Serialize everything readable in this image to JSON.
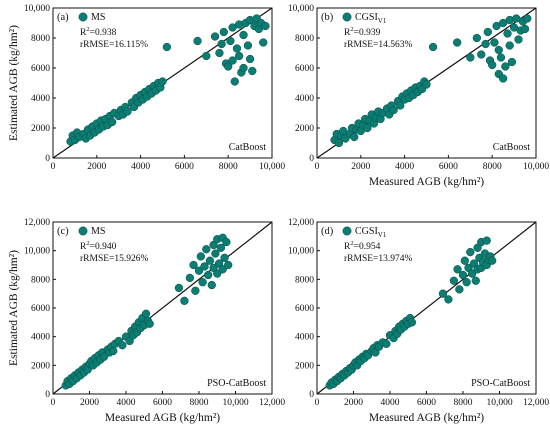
{
  "chart_data": [
    {
      "type": "scatter",
      "panel_label": "(a)",
      "series_name": "MS",
      "series_sub": "",
      "r2_prefix": "R",
      "r2_sup": "2",
      "r2_value": "=0.938",
      "rrmse_text": "rRMSE=16.115%",
      "model_label": "CatBoost",
      "xlabel": "",
      "ylabel": "Estimated AGB (kg/hm²)",
      "xlim": [
        0,
        10000
      ],
      "ylim": [
        0,
        10000
      ],
      "xticks": [
        0,
        2000,
        4000,
        6000,
        8000,
        10000
      ],
      "yticks": [
        0,
        2000,
        4000,
        6000,
        8000,
        10000
      ],
      "xtick_labels": [
        "0",
        "2000",
        "4000",
        "6000",
        "8000",
        "10,000"
      ],
      "ytick_labels": [
        "0",
        "2000",
        "4000",
        "6000",
        "8000",
        "10,000"
      ],
      "color": "#0b7d72",
      "points": [
        [
          800,
          1100
        ],
        [
          900,
          1500
        ],
        [
          1000,
          1200
        ],
        [
          1100,
          1700
        ],
        [
          1200,
          1400
        ],
        [
          1400,
          1600
        ],
        [
          1500,
          1300
        ],
        [
          1600,
          1900
        ],
        [
          1700,
          1500
        ],
        [
          1800,
          2100
        ],
        [
          1900,
          1700
        ],
        [
          2000,
          2300
        ],
        [
          2100,
          1900
        ],
        [
          2200,
          2500
        ],
        [
          2300,
          2100
        ],
        [
          2400,
          2600
        ],
        [
          2500,
          2200
        ],
        [
          2600,
          2800
        ],
        [
          2700,
          2400
        ],
        [
          2800,
          3000
        ],
        [
          3000,
          2800
        ],
        [
          3100,
          3200
        ],
        [
          3200,
          2900
        ],
        [
          3300,
          3400
        ],
        [
          3400,
          3100
        ],
        [
          3600,
          3700
        ],
        [
          3700,
          3400
        ],
        [
          3800,
          4000
        ],
        [
          3900,
          3700
        ],
        [
          4000,
          4200
        ],
        [
          4100,
          3900
        ],
        [
          4200,
          4400
        ],
        [
          4300,
          4100
        ],
        [
          4400,
          4600
        ],
        [
          4500,
          4300
        ],
        [
          4600,
          4800
        ],
        [
          4700,
          4500
        ],
        [
          4800,
          5000
        ],
        [
          4900,
          4700
        ],
        [
          5000,
          5100
        ],
        [
          5200,
          7400
        ],
        [
          6600,
          7800
        ],
        [
          7000,
          6800
        ],
        [
          7400,
          8100
        ],
        [
          7600,
          7000
        ],
        [
          7700,
          7600
        ],
        [
          7800,
          8400
        ],
        [
          7900,
          6300
        ],
        [
          8000,
          6100
        ],
        [
          8100,
          7800
        ],
        [
          8200,
          8700
        ],
        [
          8200,
          6500
        ],
        [
          8300,
          5100
        ],
        [
          8400,
          7300
        ],
        [
          8500,
          8900
        ],
        [
          8500,
          6800
        ],
        [
          8600,
          5700
        ],
        [
          8700,
          8200
        ],
        [
          8700,
          6000
        ],
        [
          8800,
          9000
        ],
        [
          8900,
          7500
        ],
        [
          9000,
          6600
        ],
        [
          9000,
          9200
        ],
        [
          9100,
          5800
        ],
        [
          9200,
          8800
        ],
        [
          9300,
          9300
        ],
        [
          9400,
          8600
        ],
        [
          9500,
          9000
        ],
        [
          9600,
          7700
        ],
        [
          9700,
          8800
        ]
      ]
    },
    {
      "type": "scatter",
      "panel_label": "(b)",
      "series_name": "CGSI",
      "series_sub": "V1",
      "r2_prefix": "R",
      "r2_sup": "2",
      "r2_value": "=0.939",
      "rrmse_text": "rRMSE=14.563%",
      "model_label": "CatBoost",
      "xlabel": "Measured AGB (kg/hm²)",
      "ylabel": "",
      "xlim": [
        0,
        10000
      ],
      "ylim": [
        0,
        10000
      ],
      "xticks": [
        0,
        2000,
        4000,
        6000,
        8000,
        10000
      ],
      "yticks": [
        0,
        2000,
        4000,
        6000,
        8000,
        10000
      ],
      "xtick_labels": [
        "0",
        "2000",
        "4000",
        "6000",
        "8000",
        "10,000"
      ],
      "ytick_labels": [
        "0",
        "2000",
        "4000",
        "6000",
        "8000",
        "10,000"
      ],
      "color": "#0b7d72",
      "points": [
        [
          800,
          1200
        ],
        [
          900,
          1600
        ],
        [
          1000,
          1000
        ],
        [
          1100,
          1500
        ],
        [
          1200,
          1800
        ],
        [
          1300,
          1300
        ],
        [
          1500,
          1600
        ],
        [
          1600,
          2000
        ],
        [
          1700,
          1400
        ],
        [
          1800,
          1900
        ],
        [
          1900,
          2300
        ],
        [
          2000,
          1800
        ],
        [
          2100,
          2200
        ],
        [
          2200,
          2600
        ],
        [
          2300,
          2000
        ],
        [
          2400,
          2500
        ],
        [
          2500,
          2900
        ],
        [
          2600,
          2300
        ],
        [
          2700,
          2700
        ],
        [
          2800,
          3100
        ],
        [
          2900,
          2600
        ],
        [
          3000,
          3000
        ],
        [
          3200,
          3300
        ],
        [
          3300,
          2900
        ],
        [
          3400,
          3500
        ],
        [
          3500,
          3200
        ],
        [
          3700,
          3800
        ],
        [
          3800,
          3500
        ],
        [
          3900,
          4100
        ],
        [
          4000,
          3900
        ],
        [
          4100,
          4300
        ],
        [
          4200,
          4000
        ],
        [
          4300,
          4500
        ],
        [
          4400,
          4200
        ],
        [
          4500,
          4700
        ],
        [
          4600,
          4400
        ],
        [
          4700,
          4800
        ],
        [
          4800,
          4600
        ],
        [
          4900,
          5100
        ],
        [
          5000,
          4900
        ],
        [
          5300,
          7400
        ],
        [
          6400,
          7700
        ],
        [
          7000,
          6700
        ],
        [
          7300,
          8000
        ],
        [
          7500,
          6900
        ],
        [
          7700,
          7600
        ],
        [
          7800,
          8400
        ],
        [
          7900,
          6500
        ],
        [
          8000,
          6200
        ],
        [
          8100,
          7700
        ],
        [
          8200,
          8800
        ],
        [
          8300,
          5600
        ],
        [
          8300,
          7200
        ],
        [
          8400,
          6700
        ],
        [
          8500,
          9000
        ],
        [
          8500,
          5300
        ],
        [
          8600,
          6100
        ],
        [
          8700,
          8300
        ],
        [
          8800,
          7500
        ],
        [
          8800,
          9200
        ],
        [
          8900,
          6400
        ],
        [
          9000,
          8700
        ],
        [
          9100,
          9300
        ],
        [
          9200,
          7900
        ],
        [
          9300,
          8500
        ],
        [
          9400,
          9100
        ],
        [
          9500,
          8600
        ],
        [
          9600,
          9300
        ]
      ]
    },
    {
      "type": "scatter",
      "panel_label": "(c)",
      "series_name": "MS",
      "series_sub": "",
      "r2_prefix": "R",
      "r2_sup": "2",
      "r2_value": "=0.940",
      "rrmse_text": "rRMSE=15.926%",
      "model_label": "PSO-CatBoost",
      "xlabel": "Measured AGB (kg/hm²)",
      "ylabel": "Estimated AGB (kg/hm²)",
      "xlim": [
        0,
        12000
      ],
      "ylim": [
        0,
        12000
      ],
      "xticks": [
        0,
        2000,
        4000,
        6000,
        8000,
        10000,
        12000
      ],
      "yticks": [
        0,
        2000,
        4000,
        6000,
        8000,
        10000,
        12000
      ],
      "xtick_labels": [
        "0",
        "2000",
        "4000",
        "6000",
        "8000",
        "10,000",
        "12,000"
      ],
      "ytick_labels": [
        "0",
        "2000",
        "4000",
        "6000",
        "8000",
        "10,000",
        "12,000"
      ],
      "color": "#0b7d72",
      "points": [
        [
          700,
          600
        ],
        [
          800,
          900
        ],
        [
          900,
          700
        ],
        [
          1000,
          1100
        ],
        [
          1100,
          900
        ],
        [
          1200,
          1300
        ],
        [
          1300,
          1100
        ],
        [
          1400,
          1500
        ],
        [
          1500,
          1300
        ],
        [
          1600,
          1700
        ],
        [
          1700,
          1500
        ],
        [
          1800,
          1900
        ],
        [
          1900,
          1700
        ],
        [
          2000,
          2100
        ],
        [
          2100,
          2300
        ],
        [
          2200,
          2000
        ],
        [
          2300,
          2500
        ],
        [
          2400,
          2200
        ],
        [
          2500,
          2700
        ],
        [
          2600,
          2400
        ],
        [
          2700,
          2900
        ],
        [
          2800,
          2600
        ],
        [
          3000,
          3100
        ],
        [
          3100,
          2900
        ],
        [
          3200,
          3300
        ],
        [
          3300,
          3000
        ],
        [
          3400,
          3500
        ],
        [
          3600,
          3700
        ],
        [
          3800,
          3400
        ],
        [
          4000,
          4000
        ],
        [
          4200,
          3700
        ],
        [
          4300,
          4400
        ],
        [
          4400,
          4100
        ],
        [
          4500,
          4700
        ],
        [
          4600,
          4300
        ],
        [
          4700,
          5000
        ],
        [
          4800,
          4600
        ],
        [
          4900,
          5300
        ],
        [
          5000,
          4800
        ],
        [
          5100,
          5600
        ],
        [
          5200,
          5100
        ],
        [
          5300,
          4900
        ],
        [
          6900,
          7400
        ],
        [
          7200,
          6500
        ],
        [
          7500,
          8100
        ],
        [
          7700,
          9000
        ],
        [
          7800,
          7200
        ],
        [
          8000,
          8600
        ],
        [
          8100,
          9600
        ],
        [
          8200,
          7800
        ],
        [
          8300,
          8900
        ],
        [
          8400,
          10100
        ],
        [
          8500,
          8300
        ],
        [
          8600,
          9300
        ],
        [
          8700,
          7600
        ],
        [
          8800,
          10400
        ],
        [
          8800,
          8800
        ],
        [
          8900,
          9800
        ],
        [
          9000,
          8400
        ],
        [
          9000,
          10800
        ],
        [
          9100,
          9100
        ],
        [
          9200,
          10200
        ],
        [
          9300,
          8700
        ],
        [
          9300,
          10900
        ],
        [
          9400,
          9500
        ],
        [
          9500,
          10600
        ],
        [
          9600,
          9000
        ]
      ]
    },
    {
      "type": "scatter",
      "panel_label": "(d)",
      "series_name": "CGSI",
      "series_sub": "V1",
      "r2_prefix": "R",
      "r2_sup": "2",
      "r2_value": "=0.954",
      "rrmse_text": "rRMSE=13.974%",
      "model_label": "PSO-CatBoost",
      "xlabel": "Measured AGB (kg/hm²)",
      "ylabel": "",
      "xlim": [
        0,
        12000
      ],
      "ylim": [
        0,
        12000
      ],
      "xticks": [
        0,
        2000,
        4000,
        6000,
        8000,
        10000,
        12000
      ],
      "yticks": [
        0,
        2000,
        4000,
        6000,
        8000,
        10000,
        12000
      ],
      "xtick_labels": [
        "0",
        "2000",
        "4000",
        "6000",
        "8000",
        "10,000",
        "12,000"
      ],
      "ytick_labels": [
        "0",
        "2000",
        "4000",
        "6000",
        "8000",
        "10,000",
        "12,000"
      ],
      "color": "#0b7d72",
      "points": [
        [
          700,
          600
        ],
        [
          800,
          800
        ],
        [
          900,
          700
        ],
        [
          1000,
          1000
        ],
        [
          1100,
          900
        ],
        [
          1200,
          1200
        ],
        [
          1300,
          1100
        ],
        [
          1400,
          1400
        ],
        [
          1500,
          1300
        ],
        [
          1600,
          1600
        ],
        [
          1700,
          1500
        ],
        [
          1800,
          1800
        ],
        [
          1900,
          1700
        ],
        [
          2000,
          2000
        ],
        [
          2100,
          2200
        ],
        [
          2200,
          2000
        ],
        [
          2300,
          2400
        ],
        [
          2400,
          2300
        ],
        [
          2500,
          2600
        ],
        [
          2600,
          2500
        ],
        [
          2700,
          2800
        ],
        [
          2800,
          2700
        ],
        [
          3000,
          3000
        ],
        [
          3100,
          3200
        ],
        [
          3200,
          2900
        ],
        [
          3300,
          3400
        ],
        [
          3400,
          3300
        ],
        [
          3600,
          3600
        ],
        [
          3800,
          3500
        ],
        [
          4000,
          4100
        ],
        [
          4200,
          3900
        ],
        [
          4300,
          4400
        ],
        [
          4400,
          4200
        ],
        [
          4500,
          4700
        ],
        [
          4600,
          4500
        ],
        [
          4700,
          4900
        ],
        [
          4800,
          4700
        ],
        [
          4900,
          5100
        ],
        [
          5000,
          4900
        ],
        [
          5100,
          5300
        ],
        [
          5200,
          5000
        ],
        [
          6900,
          7000
        ],
        [
          7200,
          6600
        ],
        [
          7500,
          7900
        ],
        [
          7700,
          8700
        ],
        [
          7800,
          7300
        ],
        [
          8000,
          8300
        ],
        [
          8100,
          9300
        ],
        [
          8200,
          7800
        ],
        [
          8300,
          8800
        ],
        [
          8400,
          9900
        ],
        [
          8500,
          8400
        ],
        [
          8600,
          9100
        ],
        [
          8700,
          7900
        ],
        [
          8800,
          10200
        ],
        [
          8800,
          8700
        ],
        [
          8900,
          9500
        ],
        [
          9000,
          8800
        ],
        [
          9000,
          10600
        ],
        [
          9100,
          9200
        ],
        [
          9200,
          9800
        ],
        [
          9300,
          9000
        ],
        [
          9300,
          10700
        ],
        [
          9400,
          9400
        ],
        [
          9500,
          9600
        ],
        [
          9600,
          9300
        ]
      ]
    }
  ]
}
